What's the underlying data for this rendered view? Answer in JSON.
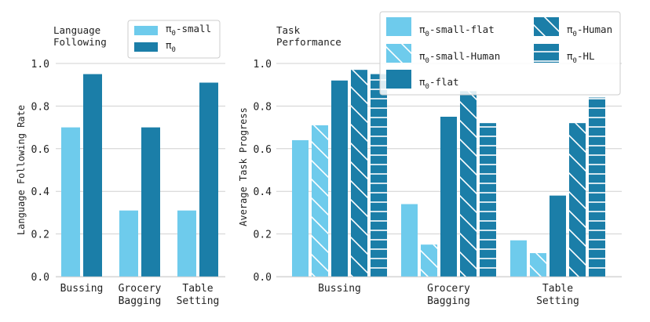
{
  "colors": {
    "small": "#6ecbec",
    "large": "#1b7ea8",
    "grid": "#d0d0d0",
    "axis": "#d8d8d8",
    "hatch": "#ffffff"
  },
  "chart_data": [
    {
      "type": "bar",
      "title": "Language Following",
      "title_lines": [
        "Language",
        "Following"
      ],
      "ylabel": "Language Following Rate",
      "ylim": [
        0,
        1.0
      ],
      "yticks": [
        "0.0",
        "0.2",
        "0.4",
        "0.6",
        "0.8",
        "1.0"
      ],
      "grid": true,
      "legend_position": "top-right",
      "categories": [
        [
          "Bussing"
        ],
        [
          "Grocery",
          "Bagging"
        ],
        [
          "Table",
          "Setting"
        ]
      ],
      "series": [
        {
          "name": "π0-small",
          "name_base": "π",
          "name_sub": "0",
          "name_rest": "-small",
          "color": "small",
          "hatch": "none",
          "values": [
            0.7,
            0.31,
            0.31
          ]
        },
        {
          "name": "π0",
          "name_base": "π",
          "name_sub": "0",
          "name_rest": "",
          "color": "large",
          "hatch": "none",
          "values": [
            0.95,
            0.7,
            0.91
          ]
        }
      ]
    },
    {
      "type": "bar",
      "title": "Task Performance",
      "title_lines": [
        "Task",
        "Performance"
      ],
      "ylabel": "Average Task Progress",
      "ylim": [
        0,
        1.0
      ],
      "yticks": [
        "0.0",
        "0.2",
        "0.4",
        "0.6",
        "0.8",
        "1.0"
      ],
      "grid": true,
      "legend_position": "top-right",
      "categories": [
        [
          "Bussing"
        ],
        [
          "Grocery",
          "Bagging"
        ],
        [
          "Table",
          "Setting"
        ]
      ],
      "series": [
        {
          "name": "π0-small-flat",
          "name_base": "π",
          "name_sub": "0",
          "name_rest": "-small-flat",
          "color": "small",
          "hatch": "none",
          "values": [
            0.64,
            0.34,
            0.17
          ]
        },
        {
          "name": "π0-small-Human",
          "name_base": "π",
          "name_sub": "0",
          "name_rest": "-small-Human",
          "color": "small",
          "hatch": "diag",
          "values": [
            0.71,
            0.15,
            0.11
          ]
        },
        {
          "name": "π0-flat",
          "name_base": "π",
          "name_sub": "0",
          "name_rest": "-flat",
          "color": "large",
          "hatch": "none",
          "values": [
            0.92,
            0.75,
            0.38
          ]
        },
        {
          "name": "π0-Human",
          "name_base": "π",
          "name_sub": "0",
          "name_rest": "-Human",
          "color": "large",
          "hatch": "diag",
          "values": [
            0.97,
            0.87,
            0.72
          ]
        },
        {
          "name": "π0-HL",
          "name_base": "π",
          "name_sub": "0",
          "name_rest": "-HL",
          "color": "large",
          "hatch": "horiz",
          "values": [
            0.95,
            0.72,
            0.84
          ]
        }
      ]
    }
  ]
}
